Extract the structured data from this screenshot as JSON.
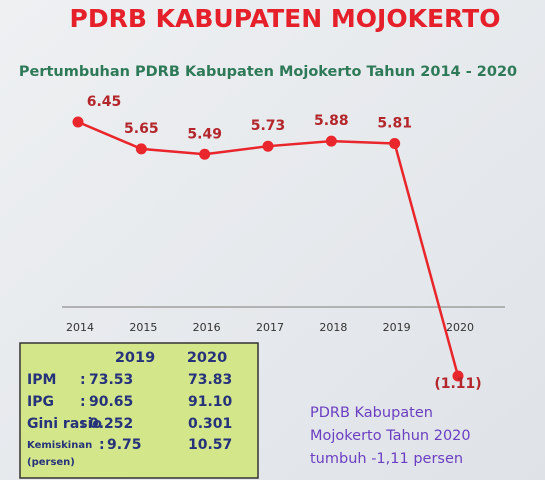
{
  "header": {
    "title": "PDRB KABUPATEN MOJOKERTO"
  },
  "chart_data": {
    "type": "line",
    "title": "Pertumbuhan PDRB Kabupaten Mojokerto Tahun 2014 - 2020",
    "categories": [
      "2014",
      "2015",
      "2016",
      "2017",
      "2018",
      "2019",
      "2020"
    ],
    "values": [
      6.45,
      5.65,
      5.49,
      5.73,
      5.88,
      5.81,
      -1.11
    ],
    "value_labels": [
      "6.45",
      "5.65",
      "5.49",
      "5.73",
      "5.88",
      "5.81",
      "(1.11)"
    ],
    "color": "#e8262b",
    "label_color": "#b3262b"
  },
  "table": {
    "columns": [
      "2019",
      "2020"
    ],
    "separator": ":",
    "rows": [
      {
        "label": "IPM",
        "values": [
          "73.53",
          "73.83"
        ]
      },
      {
        "label": "IPG",
        "values": [
          "90.65",
          "91.10"
        ]
      },
      {
        "label": "Gini rasio",
        "values": [
          "0.252",
          "0.301"
        ]
      },
      {
        "label": "Kemiskinan",
        "sublabel": "(persen)",
        "values": [
          "9.75",
          "10.57"
        ]
      }
    ]
  },
  "note": {
    "lines": [
      "PDRB Kabupaten",
      "Mojokerto Tahun 2020",
      "tumbuh -1,11 persen"
    ]
  }
}
